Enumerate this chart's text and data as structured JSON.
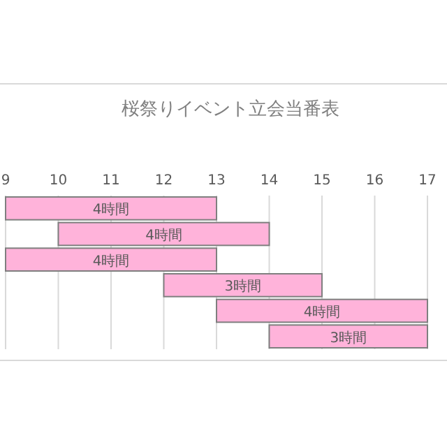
{
  "chart_data": {
    "type": "bar",
    "orientation": "horizontal",
    "title": "桜祭りイベント立会当番表",
    "categories": [
      null,
      null,
      null,
      null,
      null,
      null
    ],
    "base": [
      9,
      10,
      9,
      12,
      13,
      14
    ],
    "values": [
      4,
      4,
      4,
      3,
      4,
      3
    ],
    "value_labels": [
      "4時間",
      "4時間",
      "4時間",
      "3時間",
      "4時間",
      "3時間"
    ],
    "color": "#ffb3da",
    "xlim": [
      9,
      17
    ],
    "xticks": [
      9,
      10,
      11,
      12,
      13,
      14,
      15,
      16,
      17
    ],
    "grid": "x",
    "tick_labels": "x"
  }
}
